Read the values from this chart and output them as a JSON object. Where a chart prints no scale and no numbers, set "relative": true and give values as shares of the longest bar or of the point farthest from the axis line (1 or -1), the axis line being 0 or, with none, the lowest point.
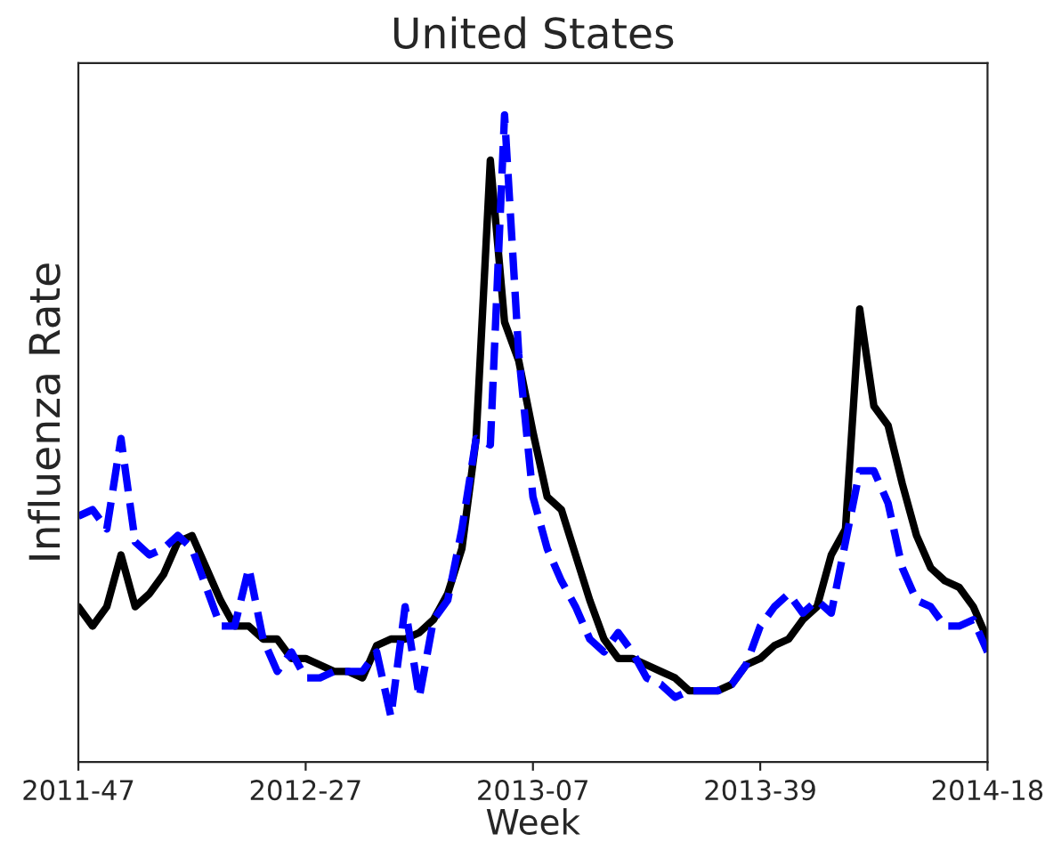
{
  "chart_data": {
    "type": "line",
    "title": "United States",
    "xlabel": "Week",
    "ylabel": "Influenza Rate",
    "relative": true,
    "grid": false,
    "legend": false,
    "categories": [
      "2011-47",
      null,
      null,
      null,
      null,
      null,
      null,
      null,
      null,
      null,
      null,
      null,
      null,
      null,
      null,
      null,
      "2012-27",
      null,
      null,
      null,
      null,
      null,
      null,
      null,
      null,
      null,
      null,
      null,
      null,
      null,
      null,
      null,
      "2013-07",
      null,
      null,
      null,
      null,
      null,
      null,
      null,
      null,
      null,
      null,
      null,
      null,
      null,
      null,
      null,
      "2013-39",
      null,
      null,
      null,
      null,
      null,
      null,
      null,
      null,
      null,
      null,
      null,
      null,
      null,
      null,
      null,
      "2014-18"
    ],
    "series": [
      {
        "color": "#000000",
        "line_style": "solid",
        "values": [
          0.24,
          0.21,
          0.24,
          0.32,
          0.24,
          0.26,
          0.29,
          0.34,
          0.35,
          0.3,
          0.25,
          0.21,
          0.21,
          0.19,
          0.19,
          0.16,
          0.16,
          0.15,
          0.14,
          0.14,
          0.13,
          0.18,
          0.19,
          0.19,
          0.2,
          0.22,
          0.26,
          0.33,
          0.5,
          0.93,
          0.68,
          0.62,
          0.51,
          0.41,
          0.39,
          0.32,
          0.25,
          0.19,
          0.16,
          0.16,
          0.15,
          0.14,
          0.13,
          0.11,
          0.11,
          0.11,
          0.12,
          0.15,
          0.16,
          0.18,
          0.19,
          0.22,
          0.24,
          0.32,
          0.36,
          0.7,
          0.55,
          0.52,
          0.43,
          0.35,
          0.3,
          0.28,
          0.27,
          0.24,
          0.19
        ]
      },
      {
        "color": "#0000ff",
        "line_style": "dashed",
        "values": [
          0.38,
          0.39,
          0.36,
          0.5,
          0.34,
          0.32,
          0.33,
          0.35,
          0.33,
          0.27,
          0.21,
          0.21,
          0.3,
          0.19,
          0.14,
          0.17,
          0.13,
          0.13,
          0.14,
          0.14,
          0.14,
          0.17,
          0.07,
          0.24,
          0.1,
          0.22,
          0.25,
          0.36,
          0.5,
          0.49,
          1.0,
          0.63,
          0.41,
          0.33,
          0.28,
          0.24,
          0.19,
          0.17,
          0.2,
          0.17,
          0.13,
          0.12,
          0.1,
          0.11,
          0.11,
          0.11,
          0.12,
          0.15,
          0.21,
          0.24,
          0.26,
          0.23,
          0.25,
          0.23,
          0.34,
          0.45,
          0.45,
          0.4,
          0.3,
          0.25,
          0.24,
          0.21,
          0.21,
          0.22,
          0.17
        ]
      }
    ]
  }
}
